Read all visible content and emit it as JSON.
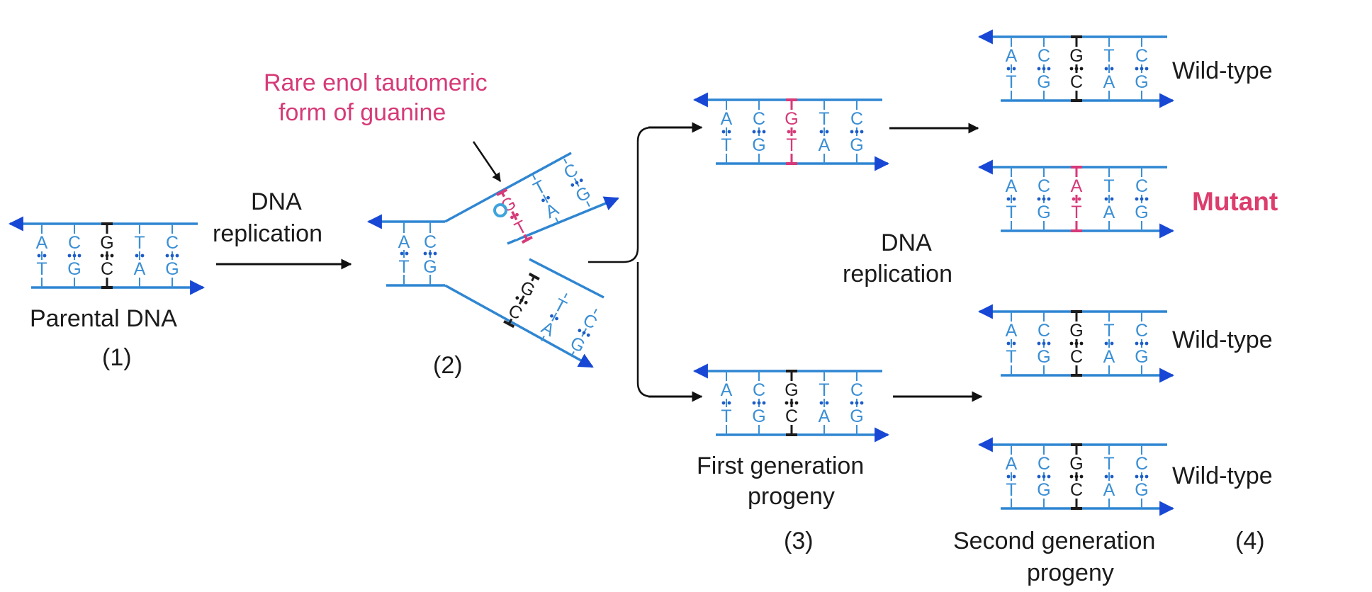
{
  "colors": {
    "strand": "#2f86d2",
    "arrowhead": "#1747d4",
    "base": "#3b8fd4",
    "mutant": "#d63a78",
    "ink": "#1b1b1b"
  },
  "labels": {
    "tautomer_line1": "Rare enol tautomeric",
    "tautomer_line2": "form of guanine",
    "replication1_line1": "DNA",
    "replication1_line2": "replication",
    "replication2_line1": "DNA",
    "replication2_line2": "replication",
    "parental": "Parental DNA",
    "step1": "(1)",
    "step2": "(2)",
    "step3": "(3)",
    "step4": "(4)",
    "first_gen_line1": "First generation",
    "first_gen_line2": "progeny",
    "second_gen_line1": "Second generation",
    "second_gen_line2": "progeny"
  },
  "duplexes": [
    {
      "id": "parental",
      "top": [
        "A",
        "C",
        "G",
        "T",
        "C"
      ],
      "bottom": [
        "T",
        "G",
        "C",
        "A",
        "G"
      ],
      "highlight": 2,
      "highlight_color": "ink"
    },
    {
      "id": "gen1-top",
      "top": [
        "A",
        "C",
        "G",
        "T",
        "C"
      ],
      "bottom": [
        "T",
        "G",
        "T",
        "A",
        "G"
      ],
      "highlight": 2,
      "highlight_color": "mutant"
    },
    {
      "id": "gen1-bottom",
      "top": [
        "A",
        "C",
        "G",
        "T",
        "C"
      ],
      "bottom": [
        "T",
        "G",
        "C",
        "A",
        "G"
      ],
      "highlight": 2,
      "highlight_color": "ink"
    },
    {
      "id": "gen2-1",
      "top": [
        "A",
        "C",
        "G",
        "T",
        "C"
      ],
      "bottom": [
        "T",
        "G",
        "C",
        "A",
        "G"
      ],
      "highlight": 2,
      "highlight_color": "ink",
      "outcome": "Wild-type"
    },
    {
      "id": "gen2-2",
      "top": [
        "A",
        "C",
        "A",
        "T",
        "C"
      ],
      "bottom": [
        "T",
        "G",
        "T",
        "A",
        "G"
      ],
      "highlight": 2,
      "highlight_color": "mutant",
      "outcome": "Mutant"
    },
    {
      "id": "gen2-3",
      "top": [
        "A",
        "C",
        "G",
        "T",
        "C"
      ],
      "bottom": [
        "T",
        "G",
        "C",
        "A",
        "G"
      ],
      "highlight": 2,
      "highlight_color": "ink",
      "outcome": "Wild-type"
    },
    {
      "id": "gen2-4",
      "top": [
        "A",
        "C",
        "G",
        "T",
        "C"
      ],
      "bottom": [
        "T",
        "G",
        "C",
        "A",
        "G"
      ],
      "highlight": 2,
      "highlight_color": "ink",
      "outcome": "Wild-type"
    }
  ],
  "fork": {
    "stem_top": [
      "A",
      "C"
    ],
    "stem_bottom": [
      "T",
      "G"
    ],
    "upper_arm_outer": [
      "G",
      "T",
      "C"
    ],
    "upper_arm_inner": [
      "T",
      "A",
      "G"
    ],
    "lower_arm_outer": [
      "G",
      "T",
      "C"
    ],
    "lower_arm_inner": [
      "C",
      "A",
      "G"
    ]
  }
}
